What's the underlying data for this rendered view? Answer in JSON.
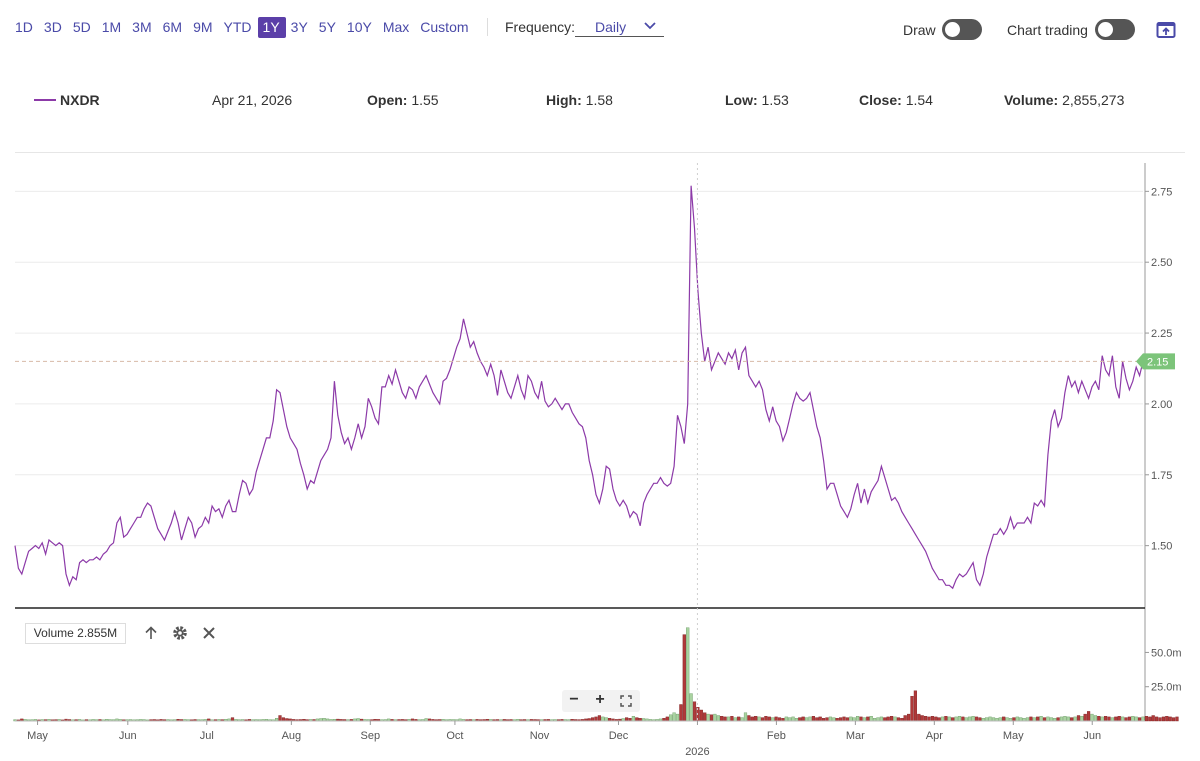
{
  "toolbar": {
    "ranges": [
      "1D",
      "3D",
      "5D",
      "1M",
      "3M",
      "6M",
      "9M",
      "YTD",
      "1Y",
      "3Y",
      "5Y",
      "10Y",
      "Max",
      "Custom"
    ],
    "active_range": "1Y",
    "frequency_label": "Frequency:",
    "frequency_value": "Daily",
    "draw_label": "Draw",
    "chart_trading_label": "Chart trading"
  },
  "info": {
    "symbol": "NXDR",
    "date": "Apr 21, 2026",
    "open_label": "Open:",
    "open": "1.55",
    "high_label": "High:",
    "high": "1.58",
    "low_label": "Low:",
    "low": "1.53",
    "close_label": "Close:",
    "close": "1.54",
    "volume_label": "Volume:",
    "volume": "2,855,273"
  },
  "volume_panel": {
    "label": "Volume 2.855M",
    "zoom_out": "−",
    "zoom_in": "+"
  },
  "colors": {
    "price_line": "#8c3aa8",
    "last_price_badge": "#7cc47a",
    "volume_up": "#a9d3a0",
    "volume_down": "#b0393a",
    "accent": "#5b3fa8"
  },
  "chart_data": {
    "type": "line",
    "title": "",
    "series_name": "NXDR",
    "last_price_label": "2.15",
    "y_ticks": [
      "1.50",
      "1.75",
      "2.00",
      "2.25",
      "2.50",
      "2.75"
    ],
    "y_tick_values": [
      1.5,
      1.75,
      2.0,
      2.25,
      2.5,
      2.75
    ],
    "ylim": [
      1.28,
      2.85
    ],
    "x_labels": [
      "May",
      "Jun",
      "Jul",
      "Aug",
      "Sep",
      "Oct",
      "Nov",
      "Dec",
      "2026",
      "Feb",
      "Mar",
      "Apr",
      "May",
      "Jun"
    ],
    "x_label_positions": [
      0.02,
      0.1,
      0.17,
      0.245,
      0.315,
      0.39,
      0.465,
      0.535,
      0.605,
      0.675,
      0.745,
      0.815,
      0.885,
      0.955
    ],
    "volume_ticks": [
      "25.0m",
      "50.0m"
    ],
    "volume_tick_values": [
      25,
      50
    ],
    "volume_ylim": [
      0,
      70
    ],
    "prices": [
      1.5,
      1.42,
      1.4,
      1.44,
      1.48,
      1.49,
      1.5,
      1.49,
      1.51,
      1.47,
      1.52,
      1.51,
      1.5,
      1.51,
      1.5,
      1.4,
      1.36,
      1.39,
      1.38,
      1.44,
      1.45,
      1.44,
      1.45,
      1.45,
      1.46,
      1.45,
      1.47,
      1.48,
      1.5,
      1.51,
      1.58,
      1.6,
      1.53,
      1.54,
      1.56,
      1.58,
      1.6,
      1.6,
      1.63,
      1.65,
      1.64,
      1.6,
      1.56,
      1.54,
      1.52,
      1.55,
      1.58,
      1.62,
      1.58,
      1.52,
      1.56,
      1.6,
      1.58,
      1.53,
      1.56,
      1.57,
      1.6,
      1.58,
      1.64,
      1.62,
      1.63,
      1.6,
      1.64,
      1.66,
      1.62,
      1.62,
      1.68,
      1.73,
      1.72,
      1.68,
      1.7,
      1.76,
      1.8,
      1.84,
      1.88,
      1.88,
      1.94,
      2.05,
      2.04,
      1.98,
      1.92,
      1.88,
      1.86,
      1.84,
      1.79,
      1.75,
      1.7,
      1.73,
      1.72,
      1.76,
      1.8,
      1.82,
      1.84,
      1.88,
      2.08,
      1.96,
      1.9,
      1.86,
      1.88,
      1.84,
      1.88,
      1.93,
      1.88,
      1.92,
      2.02,
      1.99,
      1.95,
      1.93,
      2.06,
      2.06,
      2.1,
      2.07,
      2.12,
      2.08,
      2.04,
      2.02,
      2.06,
      2.05,
      2.02,
      2.06,
      2.08,
      2.1,
      2.07,
      2.04,
      2.02,
      2.0,
      2.08,
      2.09,
      2.12,
      2.16,
      2.2,
      2.23,
      2.3,
      2.25,
      2.2,
      2.22,
      2.18,
      2.15,
      2.13,
      2.1,
      2.14,
      2.1,
      2.03,
      2.12,
      2.08,
      2.04,
      2.02,
      2.06,
      2.1,
      2.05,
      2.02,
      2.1,
      2.08,
      2.04,
      2.02,
      2.08,
      2.01,
      1.99,
      2.0,
      2.02,
      2.0,
      1.98,
      2.0,
      2.0,
      1.97,
      1.95,
      1.93,
      1.92,
      1.88,
      1.8,
      1.75,
      1.68,
      1.65,
      1.7,
      1.78,
      1.77,
      1.7,
      1.66,
      1.64,
      1.66,
      1.64,
      1.6,
      1.62,
      1.61,
      1.57,
      1.65,
      1.68,
      1.7,
      1.72,
      1.72,
      1.74,
      1.72,
      1.71,
      1.72,
      1.78,
      1.96,
      1.92,
      1.86,
      2.0,
      2.77,
      2.62,
      2.4,
      2.25,
      2.15,
      2.2,
      2.12,
      2.15,
      2.18,
      2.16,
      2.14,
      2.18,
      2.16,
      2.19,
      2.12,
      2.18,
      2.2,
      2.1,
      2.08,
      2.06,
      2.08,
      2.05,
      1.98,
      1.94,
      1.99,
      1.94,
      1.92,
      1.87,
      1.9,
      1.95,
      2.0,
      2.04,
      2.02,
      2.01,
      2.02,
      2.04,
      1.98,
      1.92,
      1.88,
      1.8,
      1.7,
      1.72,
      1.72,
      1.68,
      1.64,
      1.62,
      1.6,
      1.63,
      1.68,
      1.72,
      1.65,
      1.7,
      1.65,
      1.69,
      1.71,
      1.73,
      1.78,
      1.74,
      1.7,
      1.66,
      1.67,
      1.65,
      1.62,
      1.6,
      1.58,
      1.56,
      1.54,
      1.52,
      1.5,
      1.48,
      1.45,
      1.42,
      1.4,
      1.38,
      1.38,
      1.36,
      1.36,
      1.35,
      1.38,
      1.4,
      1.39,
      1.4,
      1.42,
      1.44,
      1.38,
      1.36,
      1.4,
      1.46,
      1.5,
      1.54,
      1.54,
      1.56,
      1.54,
      1.56,
      1.6,
      1.56,
      1.58,
      1.58,
      1.58,
      1.6,
      1.58,
      1.65,
      1.64,
      1.66,
      1.64,
      1.82,
      1.94,
      1.98,
      1.92,
      1.95,
      2.04,
      2.1,
      2.06,
      2.08,
      2.04,
      2.08,
      2.05,
      2.02,
      2.06,
      2.08,
      2.05,
      2.17,
      2.12,
      2.1,
      2.17,
      2.06,
      2.02,
      2.15,
      2.09,
      2.05,
      2.08,
      2.13,
      2.1,
      2.15
    ],
    "volumes": [
      1,
      0.8,
      1.5,
      1.2,
      0.9,
      1.0,
      1.2,
      0.8,
      1.1,
      1.0,
      1.3,
      0.9,
      1.0,
      1.2,
      0.8,
      1.4,
      1.1,
      0.9,
      1.0,
      1.2,
      0.8,
      1.0,
      0.9,
      1.2,
      1.0,
      1.1,
      0.9,
      1.3,
      1.1,
      1.0,
      1.5,
      1.2,
      0.9,
      1.0,
      1.1,
      0.9,
      1.0,
      1.2,
      1.1,
      0.8,
      1.0,
      1.1,
      0.9,
      1.2,
      1.0,
      1.1,
      0.9,
      1.0,
      1.3,
      1.1,
      1.2,
      1.0,
      0.9,
      1.1,
      1.0,
      1.0,
      1.2,
      1.5,
      0.9,
      1.0,
      1.2,
      1.0,
      1.3,
      1.5,
      2.5,
      1.2,
      1.0,
      1.1,
      0.9,
      1.2,
      1.0,
      1.1,
      1.0,
      1.2,
      1.3,
      1.0,
      0.9,
      2.0,
      4.0,
      2.5,
      1.8,
      1.5,
      1.2,
      1.0,
      1.1,
      1.3,
      1.0,
      1.2,
      1.1,
      1.5,
      1.8,
      2.0,
      1.5,
      1.2,
      1.3,
      1.4,
      1.2,
      1.1,
      1.0,
      1.2,
      1.5,
      1.8,
      1.4,
      1.2,
      1.1,
      1.0,
      1.3,
      1.2,
      1.0,
      1.1,
      1.5,
      1.2,
      1.0,
      1.1,
      1.2,
      1.0,
      1.3,
      1.5,
      1.2,
      1.0,
      1.1,
      1.8,
      1.5,
      1.2,
      1.0,
      1.1,
      1.3,
      1.0,
      1.2,
      1.1,
      1.0,
      1.5,
      1.2,
      1.0,
      1.1,
      1.0,
      1.2,
      1.0,
      1.1,
      1.3,
      1.2,
      1.0,
      1.1,
      1.0,
      1.2,
      1.0,
      1.1,
      1.0,
      1.3,
      1.0,
      1.1,
      1.0,
      1.2,
      1.1,
      1.0,
      1.0,
      1.1,
      1.2,
      1.0,
      1.1,
      1.0,
      1.2,
      1.1,
      1.0,
      1.3,
      1.1,
      1.0,
      1.2,
      1.5,
      1.8,
      2.5,
      3.0,
      4.0,
      3.0,
      2.5,
      2.0,
      1.5,
      1.2,
      1.4,
      1.8,
      2.5,
      2.0,
      3.5,
      2.5,
      2.0,
      1.8,
      1.5,
      1.2,
      1.0,
      1.2,
      1.5,
      2.0,
      3.0,
      4.5,
      6.0,
      5.0,
      12.0,
      63.0,
      68.0,
      20.0,
      14.0,
      10.0,
      8.0,
      6.0,
      5.0,
      4.5,
      5.0,
      4.0,
      3.5,
      3.0,
      3.0,
      3.5,
      2.5,
      3.0,
      2.5,
      6.0,
      4.0,
      3.0,
      3.5,
      3.0,
      2.5,
      3.5,
      3.0,
      2.5,
      3.0,
      2.5,
      2.0,
      3.0,
      2.5,
      3.0,
      2.0,
      2.5,
      3.0,
      2.5,
      3.0,
      3.5,
      2.5,
      3.0,
      2.0,
      2.5,
      3.0,
      2.5,
      2.0,
      2.5,
      3.0,
      2.5,
      3.0,
      2.5,
      3.5,
      3.0,
      2.5,
      3.0,
      3.5,
      2.0,
      2.5,
      3.0,
      2.5,
      3.0,
      3.5,
      3.0,
      2.5,
      2.0,
      4.0,
      5.0,
      18.0,
      22.0,
      5.0,
      4.0,
      3.5,
      3.0,
      3.5,
      3.0,
      2.5,
      3.0,
      3.5,
      3.0,
      2.5,
      3.0,
      3.5,
      3.0,
      2.5,
      3.0,
      3.5,
      3.0,
      2.5,
      2.0,
      2.5,
      3.0,
      2.5,
      2.0,
      2.5,
      3.0,
      2.5,
      2.0,
      2.5,
      3.0,
      2.5,
      2.0,
      2.5,
      3.0,
      2.5,
      3.0,
      3.5,
      2.5,
      3.0,
      2.5,
      2.0,
      2.5,
      3.0,
      3.5,
      3.0,
      2.5,
      3.0,
      4.0,
      3.5,
      5.0,
      7.0,
      5.0,
      4.0,
      3.5,
      3.0,
      3.5,
      3.0,
      2.5,
      3.0,
      3.5,
      3.0,
      2.5,
      3.0,
      3.5,
      3.0,
      2.5,
      3.0,
      3.5,
      3.0,
      4.0,
      3.0,
      2.5,
      3.0,
      3.5,
      3.0,
      2.5,
      3.0
    ]
  }
}
